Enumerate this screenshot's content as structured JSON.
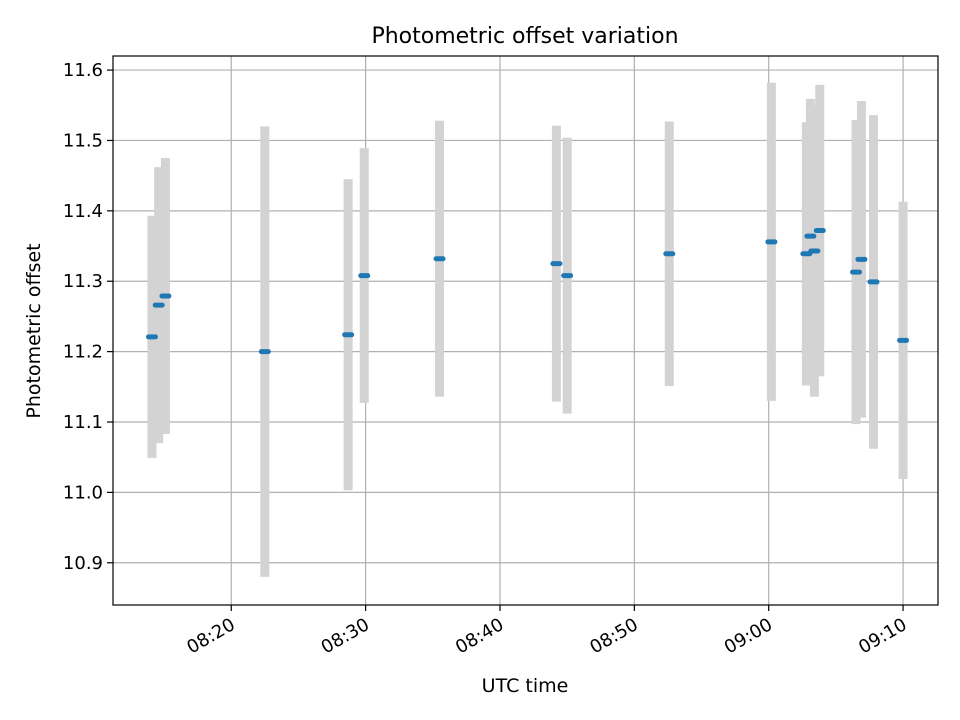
{
  "chart_data": {
    "type": "scatter",
    "title": "Photometric offset variation",
    "xlabel": "UTC time",
    "ylabel": "Photometric offset",
    "x_tick_labels": [
      "08:20",
      "08:30",
      "08:40",
      "08:50",
      "09:00",
      "09:10"
    ],
    "x_tick_minutes": [
      500,
      510,
      520,
      530,
      540,
      550
    ],
    "xlim_minutes": [
      491.2,
      552.6
    ],
    "y_ticks": [
      10.9,
      11.0,
      11.1,
      11.2,
      11.3,
      11.4,
      11.5,
      11.6
    ],
    "y_tick_labels": [
      "10.9",
      "11.0",
      "11.1",
      "11.2",
      "11.3",
      "11.4",
      "11.5",
      "11.6"
    ],
    "ylim": [
      10.84,
      11.62
    ],
    "grid": true,
    "errorbar_color": "#d3d3d3",
    "point_color": "#1f77b4",
    "points": [
      {
        "t": 494.1,
        "y": 11.221,
        "err": 0.172
      },
      {
        "t": 494.6,
        "y": 11.266,
        "err": 0.196
      },
      {
        "t": 495.1,
        "y": 11.279,
        "err": 0.196
      },
      {
        "t": 502.5,
        "y": 11.2,
        "err": 0.32
      },
      {
        "t": 508.7,
        "y": 11.224,
        "err": 0.221
      },
      {
        "t": 509.9,
        "y": 11.308,
        "err": 0.181
      },
      {
        "t": 515.5,
        "y": 11.332,
        "err": 0.196
      },
      {
        "t": 524.2,
        "y": 11.325,
        "err": 0.196
      },
      {
        "t": 525.0,
        "y": 11.308,
        "err": 0.196
      },
      {
        "t": 532.6,
        "y": 11.339,
        "err": 0.188
      },
      {
        "t": 540.2,
        "y": 11.356,
        "err": 0.226
      },
      {
        "t": 542.8,
        "y": 11.339,
        "err": 0.187
      },
      {
        "t": 543.1,
        "y": 11.364,
        "err": 0.195
      },
      {
        "t": 543.4,
        "y": 11.343,
        "err": 0.207
      },
      {
        "t": 543.8,
        "y": 11.372,
        "err": 0.207
      },
      {
        "t": 546.5,
        "y": 11.313,
        "err": 0.216
      },
      {
        "t": 546.9,
        "y": 11.331,
        "err": 0.225
      },
      {
        "t": 547.8,
        "y": 11.299,
        "err": 0.237
      },
      {
        "t": 550.0,
        "y": 11.216,
        "err": 0.197
      }
    ]
  }
}
